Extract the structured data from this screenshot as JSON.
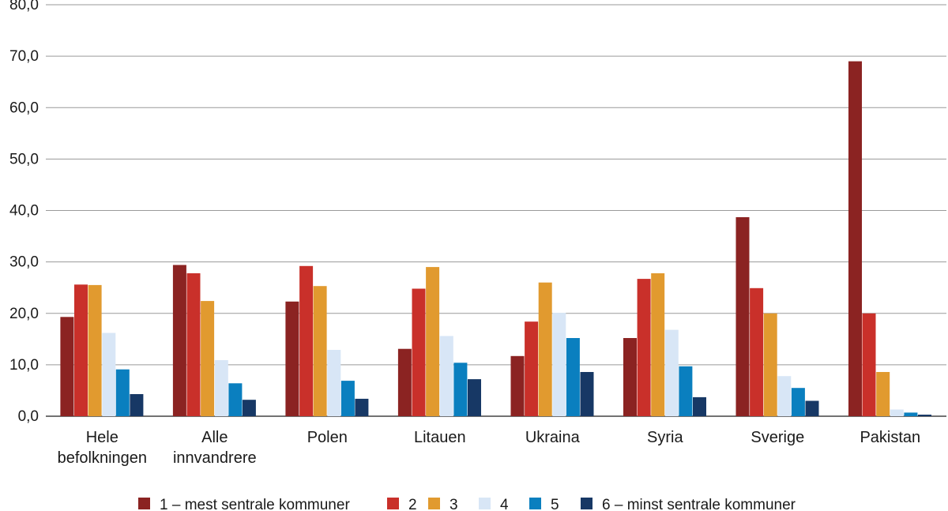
{
  "chart_data": {
    "type": "bar",
    "title": "",
    "xlabel": "",
    "ylabel": "",
    "ylim": [
      0,
      80
    ],
    "yticks": [
      "0,0",
      "10,0",
      "20,0",
      "30,0",
      "40,0",
      "50,0",
      "60,0",
      "70,0",
      "80,0"
    ],
    "grid": true,
    "legend_position": "bottom",
    "categories": [
      [
        "Hele",
        "befolkningen"
      ],
      [
        "Alle",
        "innvandrere"
      ],
      [
        "Polen"
      ],
      [
        "Litauen"
      ],
      [
        "Ukraina"
      ],
      [
        "Syria"
      ],
      [
        "Sverige"
      ],
      [
        "Pakistan"
      ]
    ],
    "series": [
      {
        "name": "1 – mest sentrale kommuner",
        "color": "#8b2322",
        "values": [
          19.3,
          29.4,
          22.3,
          13.1,
          11.7,
          15.2,
          38.7,
          69.0
        ]
      },
      {
        "name": "2",
        "color": "#c9302a",
        "values": [
          25.6,
          27.8,
          29.2,
          24.8,
          18.4,
          26.7,
          24.9,
          20.0
        ]
      },
      {
        "name": "3",
        "color": "#e19a2f",
        "values": [
          25.5,
          22.4,
          25.3,
          29.0,
          26.0,
          27.8,
          20.0,
          8.6
        ]
      },
      {
        "name": "4",
        "color": "#d8e6f6",
        "values": [
          16.2,
          10.9,
          12.9,
          15.6,
          20.1,
          16.8,
          7.8,
          1.3
        ]
      },
      {
        "name": "5",
        "color": "#0a7fbf",
        "values": [
          9.1,
          6.4,
          6.9,
          10.4,
          15.2,
          9.7,
          5.5,
          0.7
        ]
      },
      {
        "name": "6 – minst sentrale kommuner",
        "color": "#173865",
        "values": [
          4.3,
          3.2,
          3.4,
          7.2,
          8.6,
          3.7,
          3.0,
          0.3
        ]
      }
    ]
  }
}
